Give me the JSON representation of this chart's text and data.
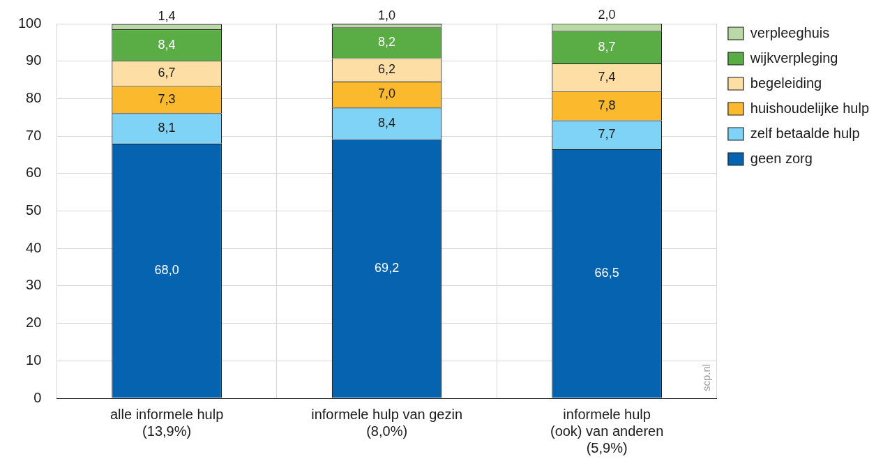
{
  "chart_data": {
    "type": "bar",
    "stacked": true,
    "categories": [
      "alle informele hulp\n(13,9%)",
      "informele hulp van gezin\n(8,0%)",
      "informele hulp\n(ook) van anderen\n(5,9%)"
    ],
    "series": [
      {
        "name": "geen zorg",
        "color": "#0563b0",
        "values": [
          68.0,
          69.2,
          66.5
        ],
        "value_labels": [
          "68,0",
          "69,2",
          "66,5"
        ]
      },
      {
        "name": "zelf betaalde hulp",
        "color": "#7fd3f7",
        "values": [
          8.1,
          8.4,
          7.7
        ],
        "value_labels": [
          "8,1",
          "8,4",
          "7,7"
        ]
      },
      {
        "name": "huishoudelijke hulp",
        "color": "#fbb92d",
        "values": [
          7.3,
          7.0,
          7.8
        ],
        "value_labels": [
          "7,3",
          "7,0",
          "7,8"
        ]
      },
      {
        "name": "begeleiding",
        "color": "#fddfa6",
        "values": [
          6.7,
          6.2,
          7.4
        ],
        "value_labels": [
          "6,7",
          "6,2",
          "7,4"
        ]
      },
      {
        "name": "wijkverpleging",
        "color": "#5aac44",
        "values": [
          8.4,
          8.2,
          8.7
        ],
        "value_labels": [
          "8,4",
          "8,2",
          "8,7"
        ]
      },
      {
        "name": "verpleeghuis",
        "color": "#b9d9a5",
        "values": [
          1.4,
          1.0,
          2.0
        ],
        "value_labels": [
          "1,4",
          "1,0",
          "2,0"
        ]
      }
    ],
    "ylim": [
      0,
      100
    ],
    "yticks": [
      0,
      10,
      20,
      30,
      40,
      50,
      60,
      70,
      80,
      90,
      100
    ],
    "grid": true,
    "legend": "top right",
    "annotations": [
      "scp.nl"
    ]
  }
}
